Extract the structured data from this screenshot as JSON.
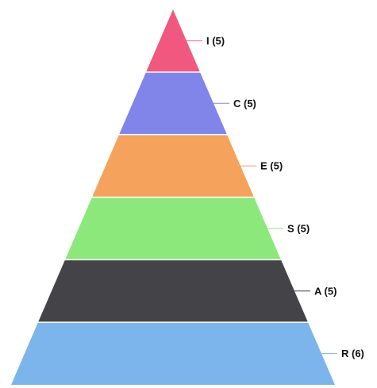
{
  "chart_data": {
    "type": "pyramid",
    "title": "",
    "segments": [
      {
        "category": "I",
        "value": 5,
        "label": "I (5)",
        "color": "#f0587f"
      },
      {
        "category": "C",
        "value": 5,
        "label": "C (5)",
        "color": "#8185ea"
      },
      {
        "category": "E",
        "value": 5,
        "label": "E (5)",
        "color": "#f5a25c"
      },
      {
        "category": "S",
        "value": 5,
        "label": "S (5)",
        "color": "#8ce87a"
      },
      {
        "category": "A",
        "value": 5,
        "label": "A (5)",
        "color": "#434348"
      },
      {
        "category": "R",
        "value": 6,
        "label": "R (6)",
        "color": "#7cb5ec"
      }
    ],
    "legend": "none",
    "data_labels": "right, with leader lines"
  }
}
